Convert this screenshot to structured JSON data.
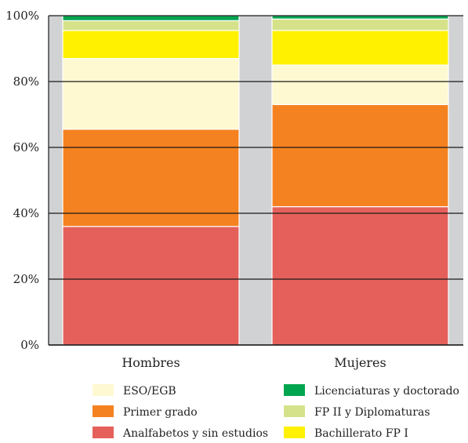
{
  "chart_data": {
    "type": "bar",
    "stacked": true,
    "categories": [
      "Hombres",
      "Mujeres"
    ],
    "series": [
      {
        "name": "Analfabetos y sin estudios",
        "color": "#e5605a",
        "values": [
          36,
          42
        ]
      },
      {
        "name": "Primer grado",
        "color": "#f58220",
        "values": [
          29.5,
          31
        ]
      },
      {
        "name": "ESO/EGB",
        "color": "#fef9d1",
        "values": [
          21.5,
          12
        ]
      },
      {
        "name": "Bachillerato FP I",
        "color": "#fff100",
        "values": [
          8.5,
          10.5
        ]
      },
      {
        "name": "FP II y Diplomaturas",
        "color": "#d6e28a",
        "values": [
          3,
          3.5
        ]
      },
      {
        "name": "Licenciaturas y doctorado",
        "color": "#00a550",
        "values": [
          1.5,
          1
        ]
      }
    ],
    "y_ticks": [
      "0%",
      "20%",
      "40%",
      "60%",
      "80%",
      "100%"
    ],
    "ylim": [
      0,
      100
    ],
    "y_unit": "%",
    "grid": true,
    "legend_position": "bottom",
    "legend_columns": [
      [
        "ESO/EGB",
        "Primer grado",
        "Analfabetos y sin estudios"
      ],
      [
        "Licenciaturas y doctorado",
        "FP II y Diplomaturas",
        "Bachillerato FP I"
      ]
    ],
    "plot_background": "#d1d2d4",
    "gridline_color": "#1a1a1a"
  }
}
